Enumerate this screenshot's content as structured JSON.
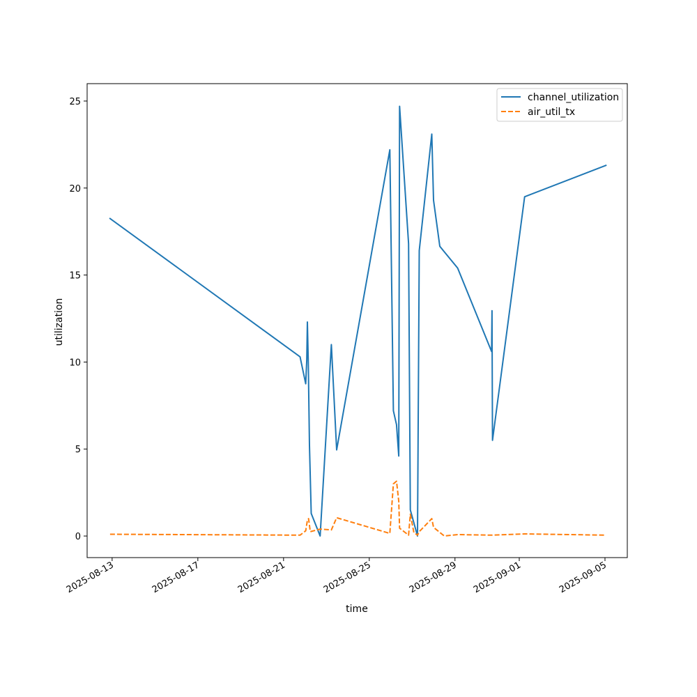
{
  "chart_data": {
    "type": "line",
    "title": "",
    "xlabel": "time",
    "ylabel": "utilization",
    "x_type": "datetime",
    "xlim": [
      "2025-08-11T20:00",
      "2025-09-06T01:00"
    ],
    "ylim": [
      -1.24,
      26.0
    ],
    "x_ticks": [
      {
        "date": "2025-08-13T00:00",
        "label": "2025-08-13"
      },
      {
        "date": "2025-08-17T00:00",
        "label": "2025-08-17"
      },
      {
        "date": "2025-08-21T00:00",
        "label": "2025-08-21"
      },
      {
        "date": "2025-08-25T00:00",
        "label": "2025-08-25"
      },
      {
        "date": "2025-08-29T00:00",
        "label": "2025-08-29"
      },
      {
        "date": "2025-09-01T00:00",
        "label": "2025-09-01"
      },
      {
        "date": "2025-09-05T00:00",
        "label": "2025-09-05"
      }
    ],
    "y_ticks": [
      0,
      5,
      10,
      15,
      20,
      25
    ],
    "grid": false,
    "legend_position": "top-right",
    "series": [
      {
        "name": "channel_utilization",
        "color": "#1f77b4",
        "style": "solid",
        "points": [
          {
            "x": "2025-08-12T21:40",
            "y": 18.25
          },
          {
            "x": "2025-08-21T18:30",
            "y": 10.3
          },
          {
            "x": "2025-08-22T00:50",
            "y": 8.75
          },
          {
            "x": "2025-08-22T02:00",
            "y": 10.1
          },
          {
            "x": "2025-08-22T02:40",
            "y": 12.3
          },
          {
            "x": "2025-08-22T03:40",
            "y": 10.0
          },
          {
            "x": "2025-08-22T05:00",
            "y": 5.2
          },
          {
            "x": "2025-08-22T07:00",
            "y": 1.3
          },
          {
            "x": "2025-08-22T17:00",
            "y": 0.0
          },
          {
            "x": "2025-08-23T05:30",
            "y": 11.0
          },
          {
            "x": "2025-08-23T11:30",
            "y": 4.95
          },
          {
            "x": "2025-08-25T23:00",
            "y": 22.2
          },
          {
            "x": "2025-08-26T03:00",
            "y": 7.2
          },
          {
            "x": "2025-08-26T06:30",
            "y": 6.4
          },
          {
            "x": "2025-08-26T09:00",
            "y": 4.6
          },
          {
            "x": "2025-08-26T10:00",
            "y": 24.7
          },
          {
            "x": "2025-08-26T20:00",
            "y": 16.8
          },
          {
            "x": "2025-08-26T22:00",
            "y": 1.5
          },
          {
            "x": "2025-08-27T06:00",
            "y": 0.0
          },
          {
            "x": "2025-08-27T08:00",
            "y": 16.4
          },
          {
            "x": "2025-08-27T22:00",
            "y": 23.1
          },
          {
            "x": "2025-08-28T00:00",
            "y": 19.3
          },
          {
            "x": "2025-08-28T07:00",
            "y": 16.65
          },
          {
            "x": "2025-08-29T03:00",
            "y": 15.4
          },
          {
            "x": "2025-08-30T17:00",
            "y": 10.6
          },
          {
            "x": "2025-08-30T17:30",
            "y": 12.95
          },
          {
            "x": "2025-08-30T17:40",
            "y": 10.6
          },
          {
            "x": "2025-08-30T18:00",
            "y": 5.5
          },
          {
            "x": "2025-09-01T06:00",
            "y": 19.5
          },
          {
            "x": "2025-09-05T01:00",
            "y": 21.3
          }
        ]
      },
      {
        "name": "air_util_tx",
        "color": "#ff7f0e",
        "style": "dashed",
        "points": [
          {
            "x": "2025-08-12T21:40",
            "y": 0.1
          },
          {
            "x": "2025-08-21T18:30",
            "y": 0.05
          },
          {
            "x": "2025-08-22T00:50",
            "y": 0.3
          },
          {
            "x": "2025-08-22T02:40",
            "y": 0.9
          },
          {
            "x": "2025-08-22T04:00",
            "y": 1.0
          },
          {
            "x": "2025-08-22T06:00",
            "y": 0.25
          },
          {
            "x": "2025-08-22T17:00",
            "y": 0.4
          },
          {
            "x": "2025-08-23T05:30",
            "y": 0.35
          },
          {
            "x": "2025-08-23T11:30",
            "y": 1.05
          },
          {
            "x": "2025-08-25T23:00",
            "y": 0.15
          },
          {
            "x": "2025-08-26T03:00",
            "y": 3.0
          },
          {
            "x": "2025-08-26T06:30",
            "y": 3.15
          },
          {
            "x": "2025-08-26T09:00",
            "y": 2.0
          },
          {
            "x": "2025-08-26T10:00",
            "y": 0.45
          },
          {
            "x": "2025-08-26T20:00",
            "y": 0.05
          },
          {
            "x": "2025-08-26T22:00",
            "y": 1.25
          },
          {
            "x": "2025-08-27T02:00",
            "y": 0.2
          },
          {
            "x": "2025-08-27T06:00",
            "y": 0.05
          },
          {
            "x": "2025-08-27T08:00",
            "y": 0.25
          },
          {
            "x": "2025-08-27T22:00",
            "y": 1.0
          },
          {
            "x": "2025-08-28T00:00",
            "y": 0.5
          },
          {
            "x": "2025-08-28T12:00",
            "y": 0.0
          },
          {
            "x": "2025-08-29T03:00",
            "y": 0.08
          },
          {
            "x": "2025-08-30T17:00",
            "y": 0.05
          },
          {
            "x": "2025-09-01T06:00",
            "y": 0.12
          },
          {
            "x": "2025-09-05T01:00",
            "y": 0.05
          }
        ]
      }
    ]
  }
}
